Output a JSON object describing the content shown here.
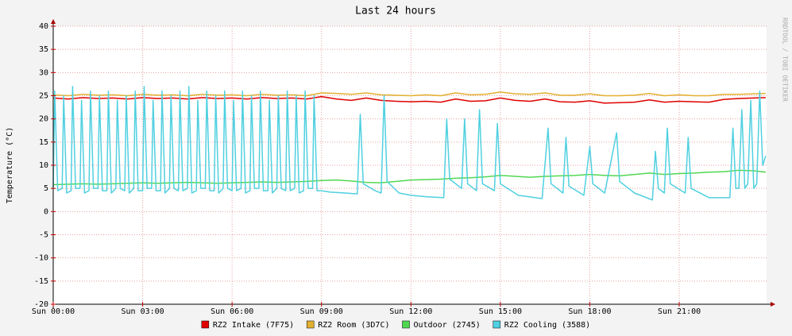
{
  "chart_data": {
    "type": "line",
    "title": "Last 24 hours",
    "y_label": "Temperature (°C)",
    "watermark": "RRDTOOL / TOBI OETIKER",
    "grid": true,
    "legend": "bottom",
    "xlim": [
      0,
      23.93
    ],
    "xticks": [
      {
        "value": 0,
        "label": "Sun 00:00"
      },
      {
        "value": 3,
        "label": "Sun 03:00"
      },
      {
        "value": 6,
        "label": "Sun 06:00"
      },
      {
        "value": 9,
        "label": "Sun 09:00"
      },
      {
        "value": 12,
        "label": "Sun 12:00"
      },
      {
        "value": 15,
        "label": "Sun 15:00"
      },
      {
        "value": 18,
        "label": "Sun 18:00"
      },
      {
        "value": 21,
        "label": "Sun 21:00"
      }
    ],
    "ylim": [
      -20,
      40
    ],
    "yticks": [
      -20,
      -15,
      -10,
      -5,
      0,
      5,
      10,
      15,
      20,
      25,
      30,
      35,
      40
    ],
    "x": [
      0,
      0.5,
      1,
      1.5,
      2,
      2.5,
      3,
      3.5,
      4,
      4.5,
      5,
      5.5,
      6,
      6.5,
      7,
      7.5,
      8,
      8.5,
      9,
      9.5,
      10,
      10.5,
      11,
      11.5,
      12,
      12.5,
      13,
      13.5,
      14,
      14.5,
      15,
      15.5,
      16,
      16.5,
      17,
      17.5,
      18,
      18.5,
      19,
      19.5,
      20,
      20.5,
      21,
      21.5,
      22,
      22.5,
      23,
      23.5,
      23.9
    ],
    "series": [
      {
        "name": "RZ2 Intake (7F75)",
        "color": "#e00000",
        "values": [
          24.5,
          24.3,
          24.6,
          24.4,
          24.5,
          24.3,
          24.6,
          24.4,
          24.5,
          24.3,
          24.6,
          24.4,
          24.5,
          24.3,
          24.6,
          24.4,
          24.5,
          24.3,
          24.8,
          24.3,
          24.0,
          24.5,
          24.0,
          23.8,
          23.7,
          23.8,
          23.6,
          24.3,
          23.8,
          23.9,
          24.5,
          24.0,
          23.8,
          24.3,
          23.7,
          23.6,
          23.9,
          23.4,
          23.5,
          23.6,
          24.1,
          23.6,
          23.8,
          23.7,
          23.6,
          24.2,
          24.4,
          24.5,
          24.6
        ]
      },
      {
        "name": "RZ2 Room (3D7C)",
        "color": "#e2b030",
        "values": [
          25.2,
          25.0,
          25.3,
          25.1,
          25.2,
          25.0,
          25.3,
          25.1,
          25.2,
          25.0,
          25.3,
          25.1,
          25.2,
          25.0,
          25.3,
          25.1,
          25.2,
          25.0,
          25.6,
          25.5,
          25.3,
          25.6,
          25.2,
          25.1,
          25.0,
          25.2,
          25.0,
          25.6,
          25.2,
          25.3,
          25.8,
          25.4,
          25.3,
          25.6,
          25.1,
          25.1,
          25.4,
          25.0,
          25.0,
          25.1,
          25.5,
          25.0,
          25.2,
          25.0,
          25.0,
          25.3,
          25.3,
          25.4,
          25.5
        ]
      },
      {
        "name": "Outdoor (2745)",
        "color": "#50d850",
        "values": [
          5.8,
          5.9,
          6.0,
          5.9,
          6.0,
          6.1,
          6.2,
          6.1,
          6.2,
          6.3,
          6.2,
          6.1,
          6.2,
          6.3,
          6.4,
          6.3,
          6.4,
          6.5,
          6.7,
          6.8,
          6.6,
          6.3,
          6.2,
          6.5,
          6.8,
          6.9,
          7.0,
          7.2,
          7.3,
          7.5,
          7.8,
          7.6,
          7.4,
          7.6,
          7.7,
          7.8,
          8.0,
          7.8,
          7.7,
          8.0,
          8.3,
          8.0,
          8.2,
          8.3,
          8.5,
          8.6,
          8.9,
          8.8,
          8.5
        ]
      },
      {
        "name": "RZ2 Cooling (3588)",
        "color": "#50d0e0",
        "x": [
          0,
          0.05,
          0.15,
          0.3,
          0.35,
          0.45,
          0.6,
          0.65,
          0.75,
          0.9,
          0.95,
          1.05,
          1.2,
          1.25,
          1.35,
          1.5,
          1.55,
          1.65,
          1.8,
          1.85,
          1.95,
          2.1,
          2.15,
          2.25,
          2.4,
          2.45,
          2.55,
          2.7,
          2.75,
          2.85,
          3,
          3.05,
          3.15,
          3.3,
          3.35,
          3.45,
          3.6,
          3.65,
          3.75,
          3.9,
          3.95,
          4.05,
          4.2,
          4.25,
          4.35,
          4.5,
          4.55,
          4.65,
          4.8,
          4.85,
          4.95,
          5.1,
          5.15,
          5.25,
          5.4,
          5.45,
          5.55,
          5.7,
          5.75,
          5.85,
          6,
          6.05,
          6.15,
          6.3,
          6.35,
          6.45,
          6.6,
          6.65,
          6.75,
          6.9,
          6.95,
          7.05,
          7.2,
          7.25,
          7.35,
          7.5,
          7.55,
          7.65,
          7.8,
          7.85,
          7.95,
          8.1,
          8.15,
          8.25,
          8.4,
          8.45,
          8.55,
          8.7,
          8.75,
          8.85,
          9.0,
          9.3,
          9.8,
          10.2,
          10.3,
          10.4,
          10.8,
          11.0,
          11.1,
          11.2,
          11.6,
          12.0,
          12.5,
          13.1,
          13.2,
          13.3,
          13.7,
          13.8,
          13.9,
          14.2,
          14.3,
          14.4,
          14.8,
          14.9,
          15.0,
          15.6,
          16.4,
          16.6,
          16.7,
          17.1,
          17.2,
          17.3,
          17.8,
          18.0,
          18.1,
          18.5,
          18.9,
          19.0,
          19.5,
          20.1,
          20.2,
          20.3,
          20.5,
          20.6,
          20.7,
          21.2,
          21.3,
          21.4,
          22.0,
          22.7,
          22.8,
          22.9,
          23.0,
          23.1,
          23.2,
          23.3,
          23.4,
          23.5,
          23.6,
          23.7,
          23.8,
          23.9
        ],
        "values": [
          5,
          26,
          4.5,
          5,
          25,
          4,
          4.5,
          27,
          5,
          5,
          24,
          4,
          4.5,
          26,
          5,
          5,
          25,
          4.5,
          4.5,
          26,
          4,
          5,
          24,
          5,
          4.5,
          25,
          4,
          5,
          26,
          4.5,
          4.5,
          27,
          5,
          5,
          24,
          4.5,
          4.5,
          26,
          4,
          5,
          25,
          5,
          4.5,
          26,
          4.5,
          5,
          27,
          4,
          4.5,
          24,
          5,
          5,
          26,
          4.5,
          4.5,
          25,
          4,
          5,
          26,
          5,
          4.5,
          24,
          4.5,
          5,
          26,
          4,
          4.5,
          25,
          5,
          5,
          26,
          4.5,
          4.5,
          24,
          4,
          5,
          25,
          5,
          4.5,
          26,
          4.5,
          5,
          25,
          4,
          4.5,
          26,
          5,
          5,
          25,
          4.5,
          4.5,
          4.2,
          4.0,
          3.8,
          21,
          6,
          4.5,
          4,
          25,
          6.5,
          4,
          3.5,
          3.2,
          3,
          20,
          7,
          5,
          20,
          6,
          4.5,
          22,
          6,
          4.5,
          19,
          6,
          3.5,
          2.8,
          18,
          6,
          4,
          16,
          5.5,
          3.5,
          14,
          6,
          4,
          17,
          6.5,
          4,
          2.5,
          13,
          5,
          4,
          18,
          6,
          4,
          16,
          5,
          3,
          3,
          18,
          5,
          5,
          22,
          5,
          6,
          24,
          5,
          6,
          26,
          10,
          12
        ]
      }
    ]
  }
}
